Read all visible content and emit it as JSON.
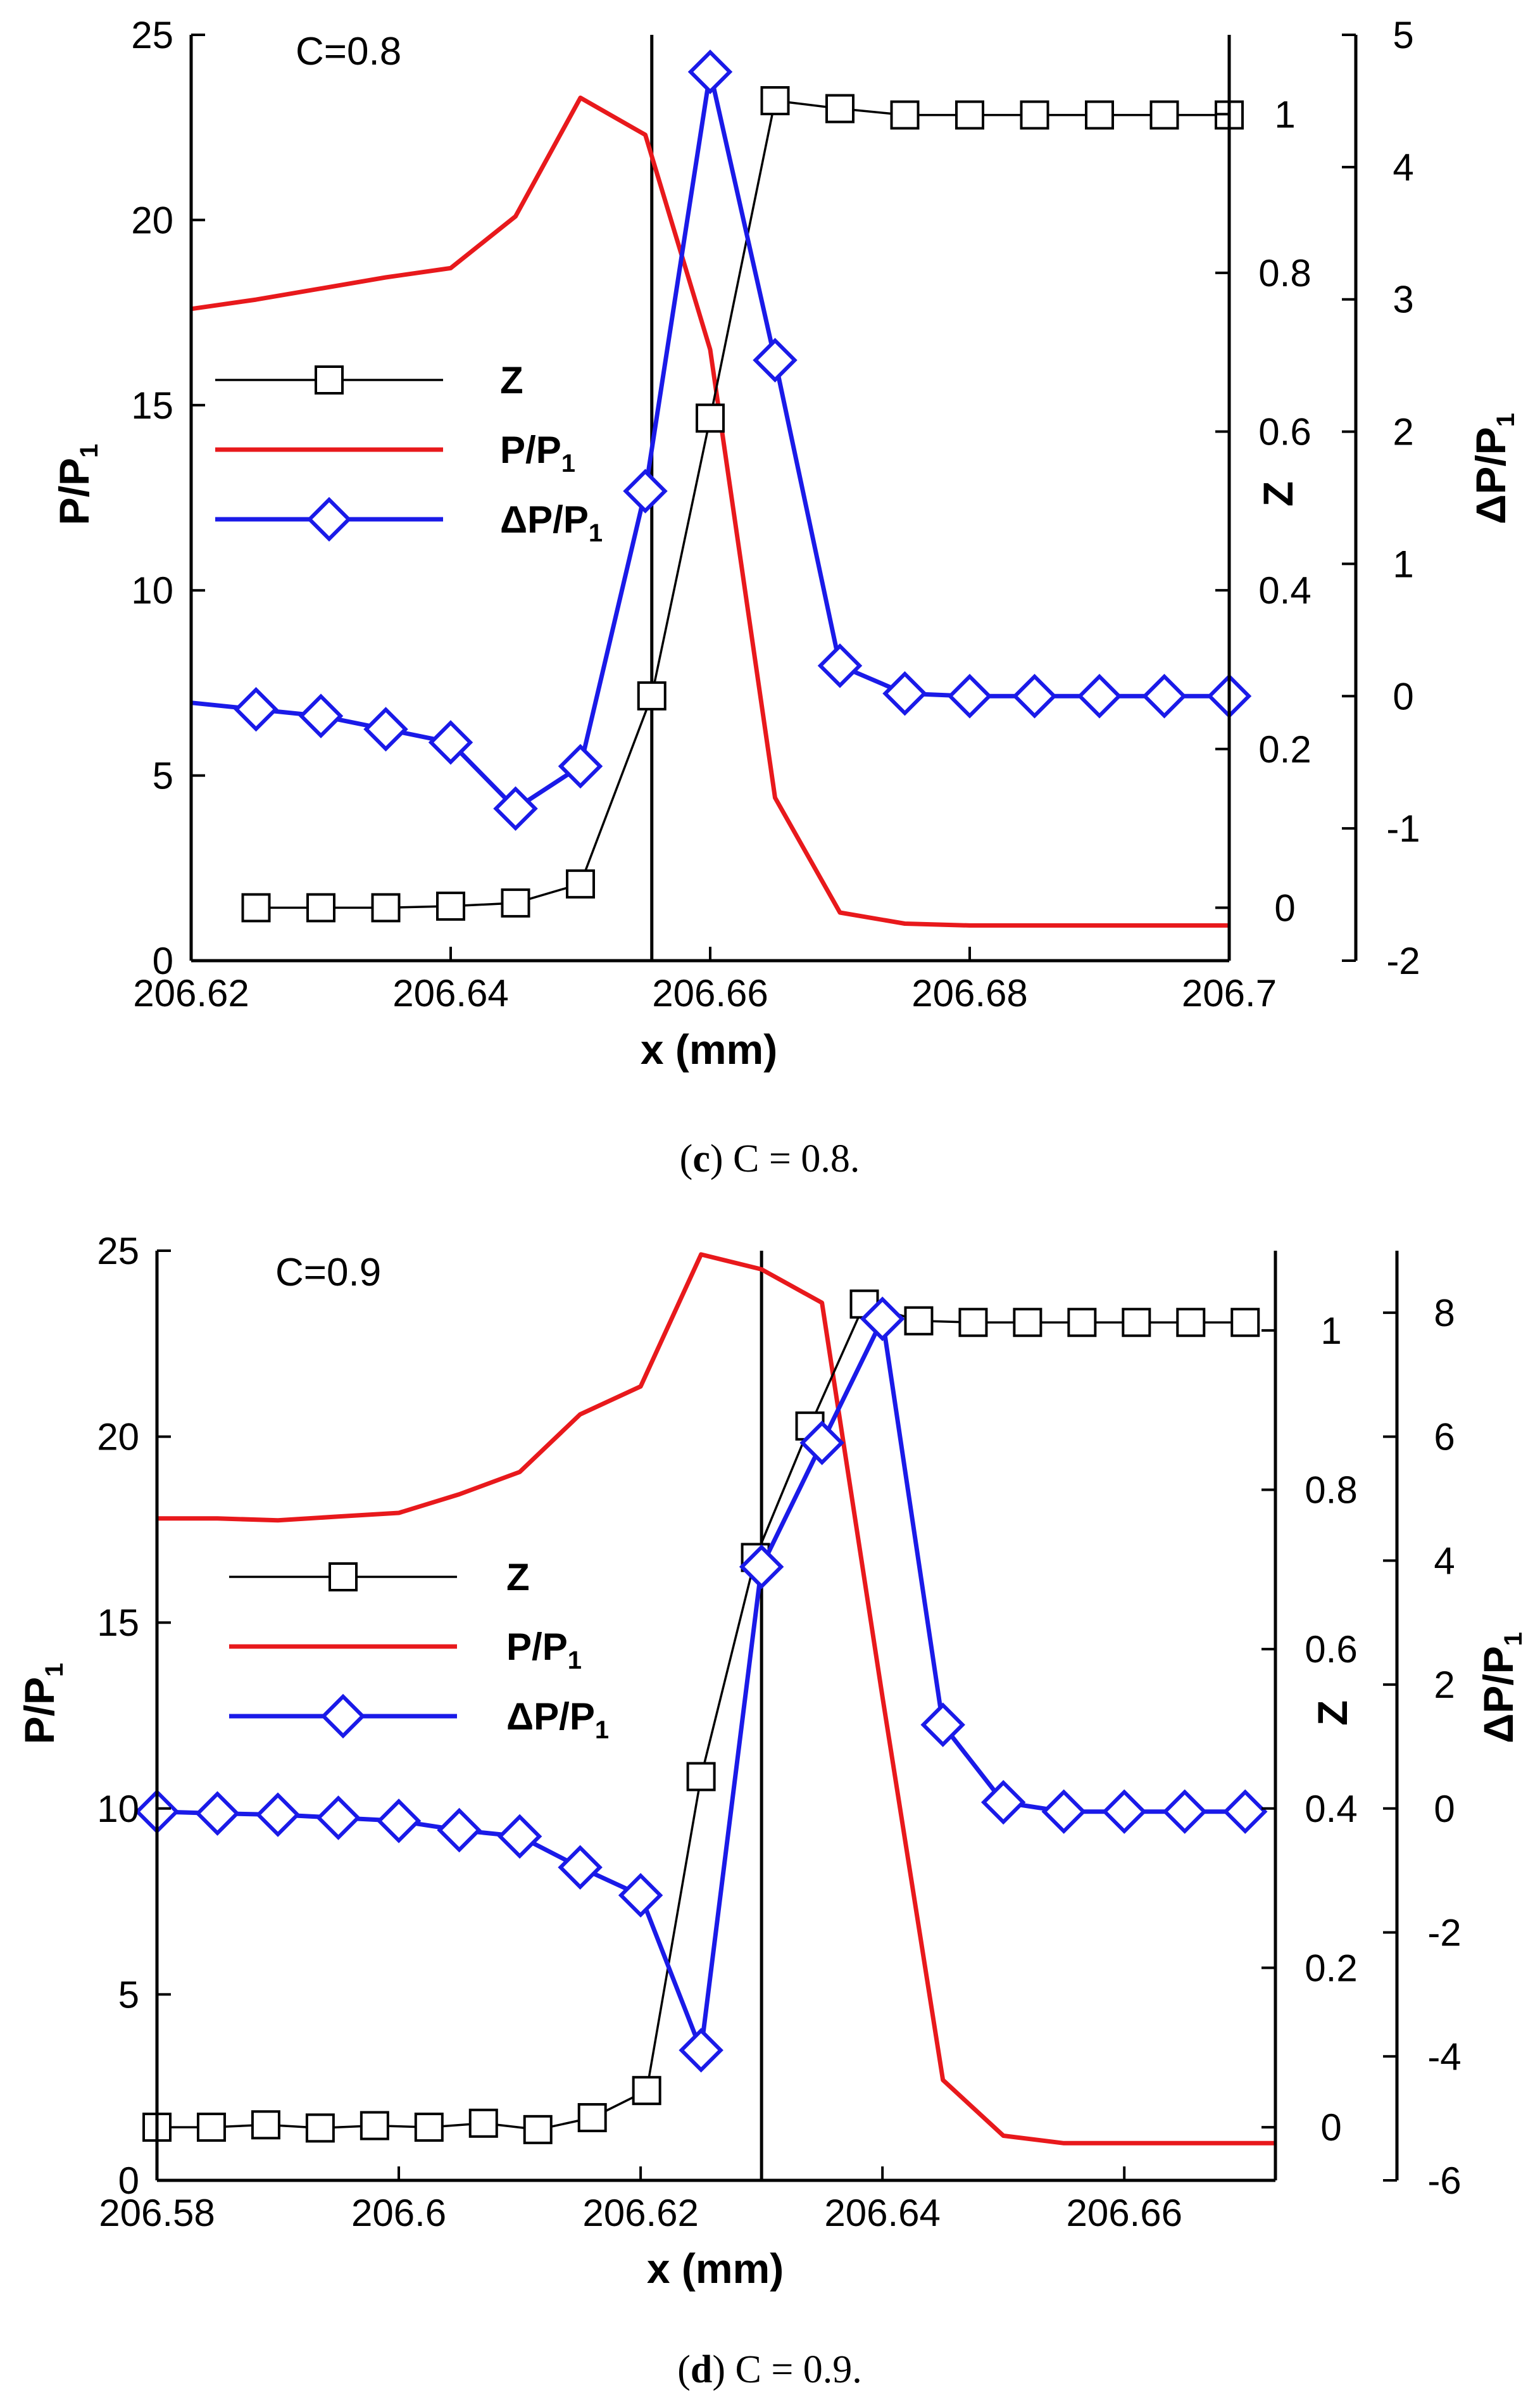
{
  "chart_data": [
    {
      "type": "line",
      "annotation": "C=0.8",
      "caption_prefix": "(",
      "caption_letter": "c",
      "caption_text": ") C = 0.8.",
      "xlabel": "x (mm)",
      "xlim": [
        206.62,
        206.7
      ],
      "xticks": [
        "206.62",
        "206.64",
        "206.66",
        "206.68",
        "206.7"
      ],
      "xtick_values": [
        206.62,
        206.64,
        206.66,
        206.68,
        206.7
      ],
      "y_left": {
        "label": "P/P",
        "label_sub": "1",
        "lim": [
          0,
          25
        ],
        "ticks": [
          "0",
          "5",
          "10",
          "15",
          "20",
          "25"
        ],
        "tick_values": [
          0,
          5,
          10,
          15,
          20,
          25
        ]
      },
      "y_right_inner": {
        "label": "Z",
        "lim": [
          -0.0667,
          1.1
        ],
        "ticks": [
          "0",
          "0.2",
          "0.4",
          "0.6",
          "0.8",
          "1"
        ],
        "tick_values": [
          0,
          0.2,
          0.4,
          0.6,
          0.8,
          1
        ]
      },
      "y_right_outer": {
        "label": "ΔP/P",
        "label_sub": "1",
        "lim": [
          -2,
          5
        ],
        "ticks": [
          "-2",
          "-1",
          "0",
          "1",
          "2",
          "3",
          "4",
          "5"
        ],
        "tick_values": [
          -2,
          -1,
          0,
          1,
          2,
          3,
          4,
          5
        ]
      },
      "vline_x": 206.6555,
      "legend": [
        {
          "name": "Z",
          "name_sub": ""
        },
        {
          "name": "P/P",
          "name_sub": "1"
        },
        {
          "name": "ΔP/P",
          "name_sub": "1"
        }
      ],
      "series": [
        {
          "name": "Z",
          "axis": "y_right_inner",
          "color": "#000000",
          "marker": "square",
          "x": [
            206.625,
            206.63,
            206.635,
            206.64,
            206.645,
            206.65,
            206.6555,
            206.66,
            206.665,
            206.67,
            206.675,
            206.68,
            206.685,
            206.69,
            206.695,
            206.7
          ],
          "values": [
            0.0,
            0.0,
            0.0,
            0.002,
            0.006,
            0.03,
            0.267,
            0.617,
            1.017,
            1.007,
            0.999,
            0.999,
            0.999,
            0.999,
            0.999,
            0.999
          ]
        },
        {
          "name": "P/P1",
          "axis": "y_left",
          "color": "#e8191c",
          "marker": "none",
          "x": [
            206.62,
            206.625,
            206.63,
            206.635,
            206.64,
            206.645,
            206.65,
            206.655,
            206.66,
            206.665,
            206.67,
            206.675,
            206.68,
            206.685,
            206.69,
            206.695,
            206.7
          ],
          "values": [
            17.6,
            17.85,
            18.15,
            18.45,
            18.7,
            20.1,
            23.3,
            22.3,
            16.5,
            4.4,
            1.3,
            1.0,
            0.95,
            0.95,
            0.95,
            0.95,
            0.95
          ]
        },
        {
          "name": "ΔP/P1",
          "axis": "y_right_outer",
          "color": "#1a1ae8",
          "marker": "diamond",
          "x": [
            206.62,
            206.625,
            206.63,
            206.635,
            206.64,
            206.645,
            206.65,
            206.655,
            206.66,
            206.665,
            206.67,
            206.675,
            206.68,
            206.685,
            206.69,
            206.695,
            206.7
          ],
          "values": [
            -0.05,
            -0.1,
            -0.15,
            -0.25,
            -0.35,
            -0.85,
            -0.53,
            1.55,
            4.72,
            2.54,
            0.23,
            0.02,
            0.0,
            0.0,
            0.0,
            0.0,
            0.0
          ],
          "markers_from": 1
        }
      ]
    },
    {
      "type": "line",
      "annotation": "C=0.9",
      "caption_prefix": "(",
      "caption_letter": "d",
      "caption_text": ") C = 0.9.",
      "xlabel": "x (mm)",
      "xlim": [
        206.58,
        206.6725
      ],
      "xticks": [
        "206.58",
        "206.6",
        "206.62",
        "206.64",
        "206.66"
      ],
      "xtick_values": [
        206.58,
        206.6,
        206.62,
        206.64,
        206.66
      ],
      "y_left": {
        "label": "P/P",
        "label_sub": "1",
        "lim": [
          0,
          25
        ],
        "ticks": [
          "0",
          "5",
          "10",
          "15",
          "20",
          "25"
        ],
        "tick_values": [
          0,
          5,
          10,
          15,
          20,
          25
        ]
      },
      "y_right_inner": {
        "label": "Z",
        "lim": [
          -0.0667,
          1.1
        ],
        "ticks": [
          "0",
          "0.2",
          "0.4",
          "0.6",
          "0.8",
          "1"
        ],
        "tick_values": [
          0,
          0.2,
          0.4,
          0.6,
          0.8,
          1
        ]
      },
      "y_right_outer": {
        "label": "ΔP/P",
        "label_sub": "1",
        "lim": [
          -6,
          9
        ],
        "ticks": [
          "-6",
          "-4",
          "-2",
          "0",
          "2",
          "4",
          "6",
          "8"
        ],
        "tick_values": [
          -6,
          -4,
          -2,
          0,
          2,
          4,
          6,
          8
        ]
      },
      "vline_x": 206.63,
      "legend": [
        {
          "name": "Z",
          "name_sub": ""
        },
        {
          "name": "P/P",
          "name_sub": "1"
        },
        {
          "name": "ΔP/P",
          "name_sub": "1"
        }
      ],
      "series": [
        {
          "name": "Z",
          "axis": "y_right_inner",
          "color": "#000000",
          "marker": "square",
          "x": [
            206.58,
            206.5845,
            206.589,
            206.5935,
            206.598,
            206.6025,
            206.607,
            206.6115,
            206.616,
            206.6205,
            206.625,
            206.6295,
            206.634,
            206.6385,
            206.643,
            206.6475,
            206.652,
            206.6565,
            206.661,
            206.6655,
            206.67
          ],
          "values": [
            0.0,
            0.0,
            0.003,
            -0.001,
            0.002,
            0.0,
            0.005,
            -0.003,
            0.012,
            0.046,
            0.44,
            0.715,
            0.88,
            1.033,
            1.012,
            1.01,
            1.01,
            1.01,
            1.01,
            1.01,
            1.01
          ]
        },
        {
          "name": "P/P1",
          "axis": "y_left",
          "color": "#e8191c",
          "marker": "none",
          "x": [
            206.58,
            206.585,
            206.59,
            206.595,
            206.6,
            206.605,
            206.61,
            206.615,
            206.62,
            206.625,
            206.63,
            206.635,
            206.64,
            206.645,
            206.65,
            206.655,
            206.66,
            206.665,
            206.6725
          ],
          "values": [
            17.8,
            17.8,
            17.75,
            17.85,
            17.95,
            18.45,
            19.05,
            20.6,
            21.35,
            24.9,
            24.5,
            23.6,
            13.0,
            2.7,
            1.2,
            1.0,
            1.0,
            1.0,
            1.0
          ]
        },
        {
          "name": "ΔP/P1",
          "axis": "y_right_outer",
          "color": "#1a1ae8",
          "marker": "diamond",
          "x": [
            206.58,
            206.585,
            206.59,
            206.595,
            206.6,
            206.605,
            206.61,
            206.615,
            206.62,
            206.625,
            206.63,
            206.635,
            206.64,
            206.645,
            206.65,
            206.655,
            206.66,
            206.665,
            206.67
          ],
          "values": [
            -0.05,
            -0.08,
            -0.1,
            -0.15,
            -0.2,
            -0.35,
            -0.45,
            -0.95,
            -1.4,
            -3.9,
            3.9,
            5.9,
            7.9,
            1.35,
            0.1,
            -0.05,
            -0.05,
            -0.05,
            -0.05
          ]
        }
      ]
    }
  ]
}
